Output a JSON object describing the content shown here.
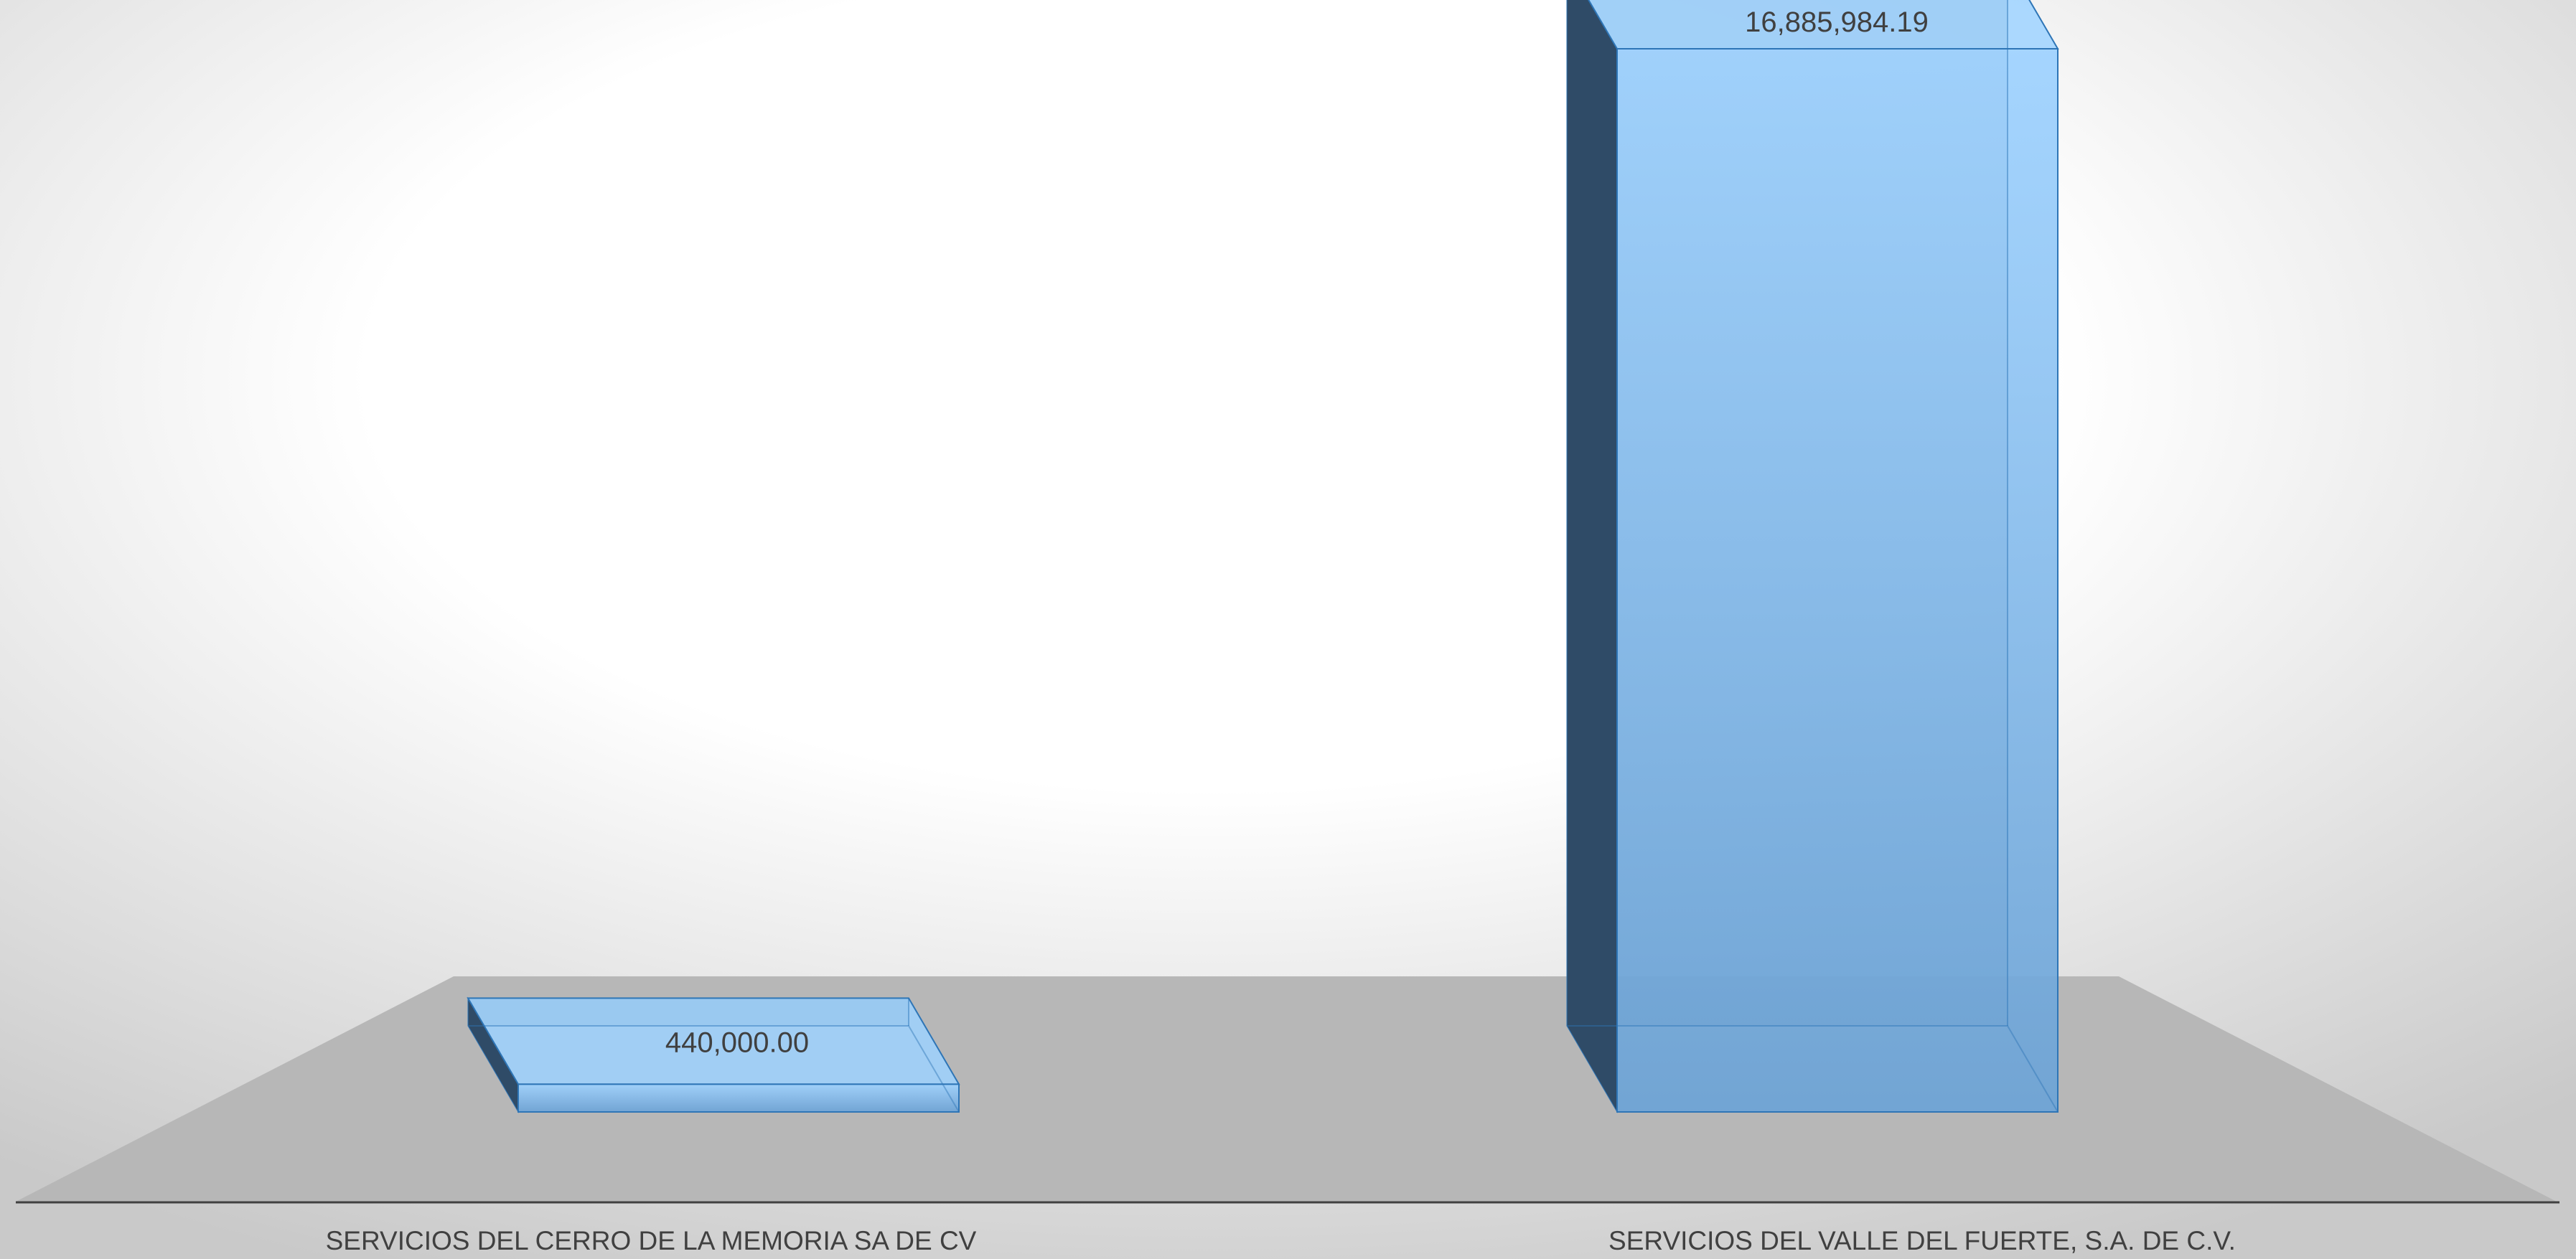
{
  "chart_data": {
    "type": "bar",
    "categories": [
      "SERVICIOS DEL CERRO DE LA MEMORIA SA DE CV",
      "SERVICIOS DEL VALLE DEL FUERTE, S.A. DE C.V."
    ],
    "values": [
      440000.0,
      16885984.19
    ],
    "data_labels": [
      "440,000.00",
      "16,885,984.19"
    ],
    "ylim": [
      0,
      16885984.19
    ],
    "grid": false,
    "legend": "none",
    "style": "3d-column",
    "colors": {
      "bar_top": "#9ED2FF",
      "bar_bottom": "#6CA3D6",
      "bar_edge": "#2E75B6",
      "bar_side": "#2F4B67",
      "floor": "#B7B7B7",
      "axis_line": "#404040",
      "text": "#404040"
    }
  }
}
